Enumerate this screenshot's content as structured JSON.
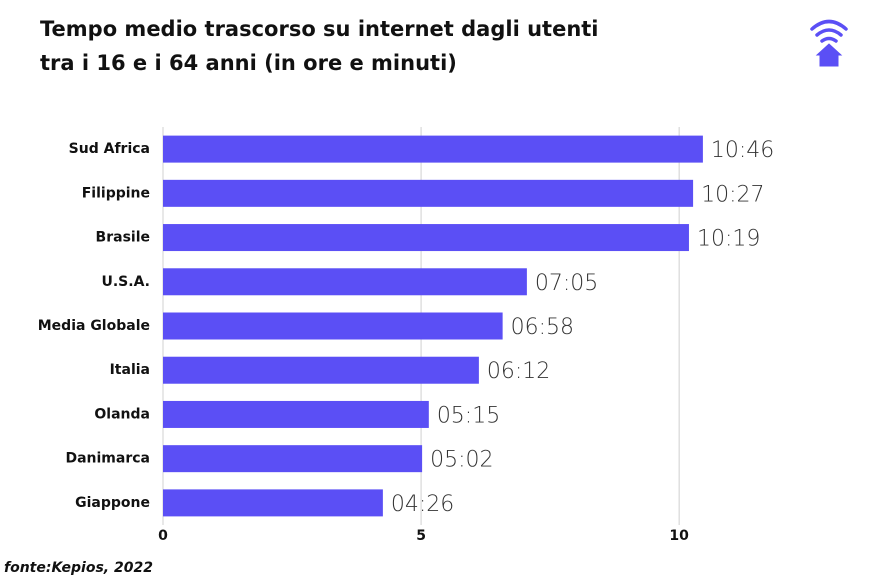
{
  "chart_data": {
    "type": "hbar",
    "title": "Tempo medio trascorso su internet dagli utenti tra i 16 e i 64 anni (in ore e minuti)",
    "categories": [
      "Sud Africa",
      "Filippine",
      "Brasile",
      "U.S.A.",
      "Media Globale",
      "Italia",
      "Olanda",
      "Danimarca",
      "Giappone"
    ],
    "values": [
      10.46,
      10.27,
      10.19,
      7.05,
      6.58,
      6.12,
      5.15,
      5.02,
      4.26
    ],
    "value_labels": [
      "10:46",
      "10:27",
      "10:19",
      "07:05",
      "06:58",
      "06:12",
      "05:15",
      "05:02",
      "04:26"
    ],
    "color": "#5b4ff5",
    "xlim": [
      0,
      13
    ],
    "xticks": [
      0,
      5,
      10
    ],
    "grid": true,
    "source": "fonte:Kepios, 2022"
  }
}
